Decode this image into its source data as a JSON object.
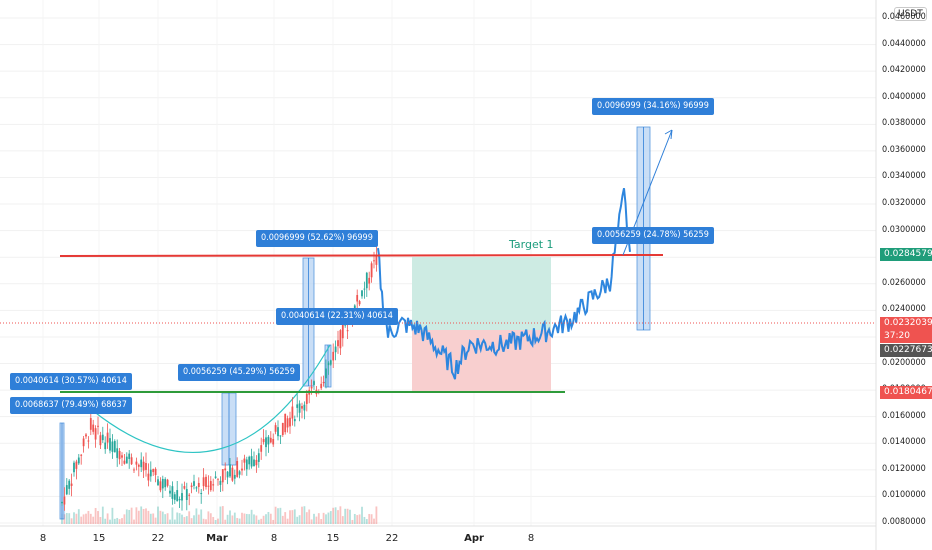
{
  "unit_label": "USDT",
  "target_label": "Target 1",
  "y_ticks": [
    "0.0460000",
    "0.0440000",
    "0.0420000",
    "0.0400000",
    "0.0380000",
    "0.0360000",
    "0.0340000",
    "0.0320000",
    "0.0300000",
    "0.0280000",
    "0.0260000",
    "0.0240000",
    "0.0220000",
    "0.0200000",
    "0.0180000",
    "0.0160000",
    "0.0140000",
    "0.0120000",
    "0.0100000",
    "0.0080000"
  ],
  "x_ticks": [
    "8",
    "15",
    "22",
    "Mar",
    "8",
    "15",
    "22",
    "Apr",
    "8"
  ],
  "price_tags": {
    "resistance": "0.0284579",
    "last_price": "0.0232039",
    "countdown": "37:20",
    "bid": "0.0227673",
    "support": "0.0180467"
  },
  "measure_labels": [
    "0.0068637 (79.49%) 68637",
    "0.0040614 (30.57%) 40614",
    "0.0056259 (45.29%) 56259",
    "0.0040614 (22.31%) 40614",
    "0.0096999 (52.62%) 96999",
    "0.0056259 (24.78%) 56259",
    "0.0096999 (34.16%) 96999"
  ],
  "colors": {
    "price_line": "#2e86de",
    "resistance": "#e53935",
    "support": "#2e9b3a",
    "candle_up": "#26a69a",
    "candle_down": "#ef5350",
    "measure": "#2f7fd8",
    "profit_zone": "#cdebe3",
    "loss_zone": "#f8cfcf"
  },
  "chart_data": {
    "type": "line",
    "ylim": [
      0.008,
      0.047
    ],
    "resistance_level": 0.0284579,
    "support_level": 0.0180467,
    "candles_range": {
      "x": [
        "Feb 8",
        "Mar 20"
      ],
      "low": 0.0085,
      "high": 0.0284
    },
    "line_series": {
      "name": "",
      "x": [
        "Mar 20",
        "Mar 21",
        "Mar 22",
        "Mar 25",
        "Mar 28",
        "Apr 1",
        "Apr 4",
        "Apr 7",
        "Apr 9",
        "Apr 12",
        "Apr 14",
        "Apr 16",
        "Apr 17",
        "Apr 18"
      ],
      "values": [
        0.0284,
        0.025,
        0.0222,
        0.023,
        0.0226,
        0.0196,
        0.0215,
        0.0214,
        0.0222,
        0.0232,
        0.0248,
        0.0262,
        0.0327,
        0.0284
      ]
    },
    "projection_target": 0.0385,
    "title": "",
    "xlabel": "",
    "ylabel": ""
  }
}
